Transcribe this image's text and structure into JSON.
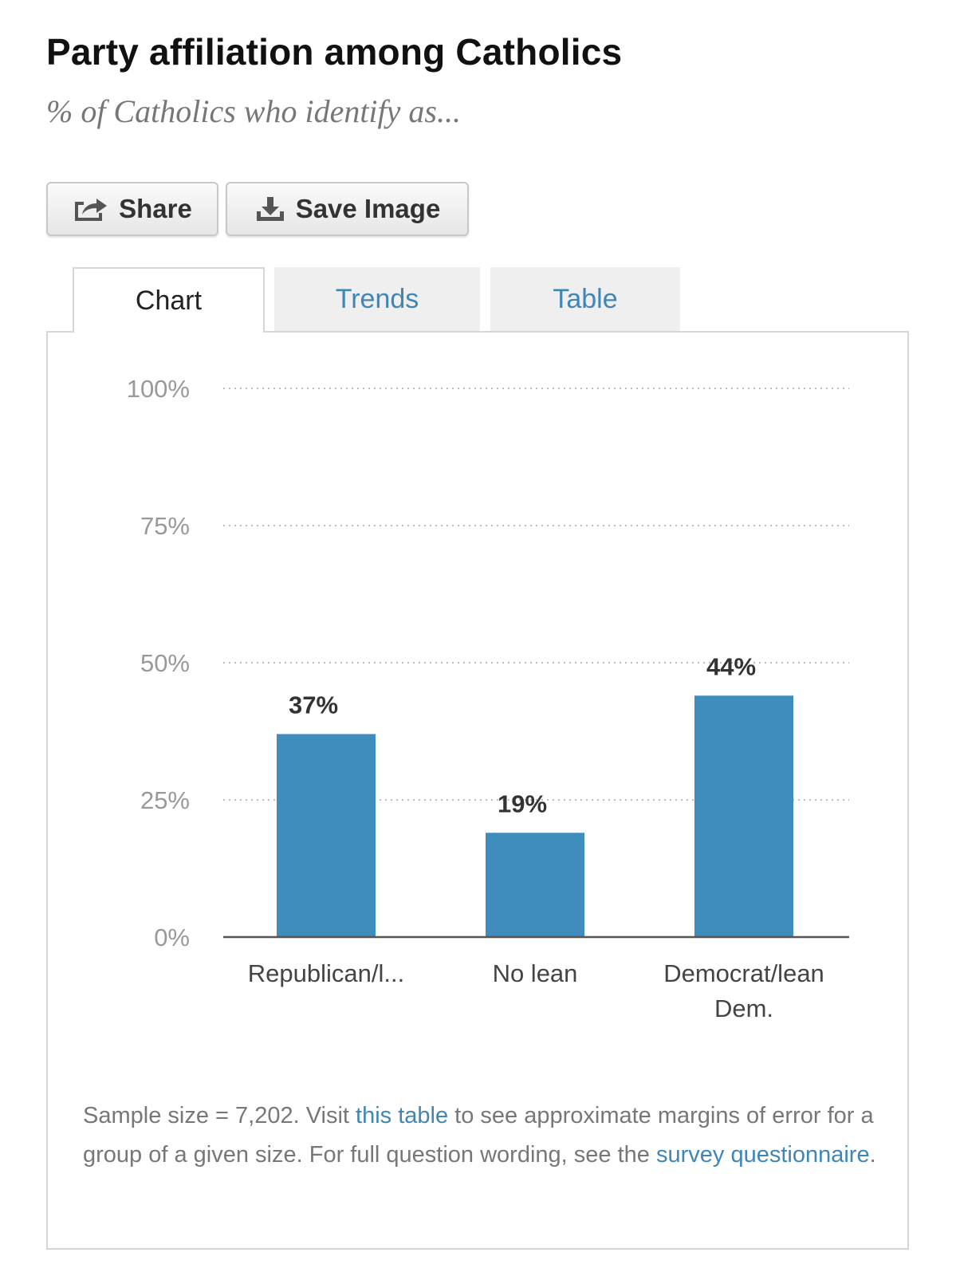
{
  "header": {
    "title": "Party affiliation among Catholics",
    "subtitle": "% of Catholics who identify as..."
  },
  "buttons": {
    "share": {
      "label": "Share",
      "icon": "share-icon"
    },
    "save": {
      "label": "Save Image",
      "icon": "download-icon"
    }
  },
  "tabs": [
    {
      "label": "Chart",
      "active": true
    },
    {
      "label": "Trends",
      "active": false
    },
    {
      "label": "Table",
      "active": false
    }
  ],
  "colors": {
    "bar": "#3f8dbd",
    "link": "#3f86b6",
    "gridline": "#bbbbbb",
    "axis": "#555555"
  },
  "chart_data": {
    "type": "bar",
    "title": "Party affiliation among Catholics",
    "subtitle": "% of Catholics who identify as...",
    "categories": [
      "Republican/l...",
      "No lean",
      "Democrat/lean Dem."
    ],
    "category_lines": [
      [
        "Republican/l..."
      ],
      [
        "No lean"
      ],
      [
        "Democrat/lean",
        "Dem."
      ]
    ],
    "values": [
      37,
      19,
      44
    ],
    "value_labels": [
      "37%",
      "19%",
      "44%"
    ],
    "ylim": [
      0,
      100
    ],
    "yticks": [
      0,
      25,
      50,
      75,
      100
    ],
    "ytick_labels": [
      "0%",
      "25%",
      "50%",
      "75%",
      "100%"
    ],
    "grid": true,
    "xlabel": "",
    "ylabel": ""
  },
  "note": {
    "text_1": "Sample size = 7,202. Visit ",
    "link_1": "this table",
    "text_2": " to see approximate margins of error for a group of a given size. For full question wording, see the ",
    "link_2": "survey questionnaire",
    "text_3": "."
  }
}
